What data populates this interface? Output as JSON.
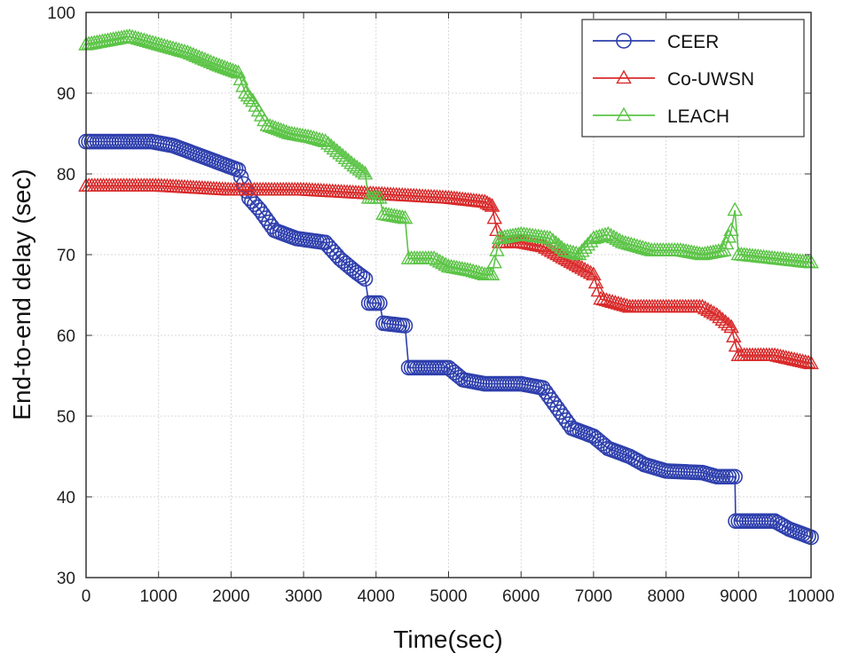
{
  "chart_data": {
    "type": "line",
    "title": "",
    "xlabel": "Time(sec)",
    "ylabel": "End-to-end delay (sec)",
    "xlim": [
      0,
      10000
    ],
    "ylim": [
      30,
      100
    ],
    "xticks": [
      0,
      1000,
      2000,
      3000,
      4000,
      5000,
      6000,
      7000,
      8000,
      9000,
      10000
    ],
    "yticks": [
      30,
      40,
      50,
      60,
      70,
      80,
      90,
      100
    ],
    "grid": true,
    "legend_position": "top-right",
    "series": [
      {
        "name": "CEER",
        "color": "#2e3fad",
        "marker": "circle",
        "points": [
          [
            0,
            84
          ],
          [
            500,
            84
          ],
          [
            900,
            84
          ],
          [
            1200,
            83.5
          ],
          [
            1500,
            82.5
          ],
          [
            1800,
            81.5
          ],
          [
            2100,
            80.5
          ],
          [
            2250,
            77
          ],
          [
            2400,
            75.5
          ],
          [
            2600,
            73
          ],
          [
            2900,
            72
          ],
          [
            3300,
            71.5
          ],
          [
            3500,
            69.5
          ],
          [
            3700,
            68
          ],
          [
            3850,
            67
          ],
          [
            3900,
            64
          ],
          [
            4050,
            64
          ],
          [
            4100,
            61.5
          ],
          [
            4400,
            61.2
          ],
          [
            4450,
            56
          ],
          [
            5000,
            56
          ],
          [
            5200,
            54.5
          ],
          [
            5500,
            54
          ],
          [
            6000,
            54
          ],
          [
            6300,
            53.5
          ],
          [
            6500,
            51
          ],
          [
            6700,
            48.5
          ],
          [
            7000,
            47.5
          ],
          [
            7200,
            46
          ],
          [
            7500,
            45
          ],
          [
            7700,
            44
          ],
          [
            8000,
            43.2
          ],
          [
            8500,
            43
          ],
          [
            8700,
            42.5
          ],
          [
            8950,
            42.5
          ],
          [
            8960,
            37
          ],
          [
            9500,
            37
          ],
          [
            9700,
            36
          ],
          [
            10000,
            35
          ]
        ]
      },
      {
        "name": "Co-UWSN",
        "color": "#d92b2b",
        "marker": "triangle",
        "points": [
          [
            0,
            78.5
          ],
          [
            1000,
            78.5
          ],
          [
            2000,
            78
          ],
          [
            3000,
            78
          ],
          [
            4000,
            77.5
          ],
          [
            5000,
            77
          ],
          [
            5500,
            76.5
          ],
          [
            5600,
            76
          ],
          [
            5700,
            71.5
          ],
          [
            6000,
            71.5
          ],
          [
            6300,
            71
          ],
          [
            6500,
            70
          ],
          [
            6800,
            68.5
          ],
          [
            7000,
            67.5
          ],
          [
            7100,
            64.5
          ],
          [
            7500,
            63.5
          ],
          [
            8000,
            63.5
          ],
          [
            8500,
            63.5
          ],
          [
            8700,
            62.5
          ],
          [
            8900,
            61
          ],
          [
            9000,
            57.5
          ],
          [
            9500,
            57.5
          ],
          [
            10000,
            56.5
          ]
        ]
      },
      {
        "name": "LEACH",
        "color": "#5cc447",
        "marker": "triangle",
        "points": [
          [
            0,
            96
          ],
          [
            300,
            96.5
          ],
          [
            600,
            97
          ],
          [
            1000,
            96
          ],
          [
            1400,
            95
          ],
          [
            1800,
            93.5
          ],
          [
            2100,
            92.5
          ],
          [
            2200,
            90
          ],
          [
            2300,
            89
          ],
          [
            2500,
            86
          ],
          [
            2800,
            85
          ],
          [
            3100,
            84.5
          ],
          [
            3300,
            84
          ],
          [
            3500,
            82.5
          ],
          [
            3700,
            81
          ],
          [
            3850,
            80
          ],
          [
            3900,
            77
          ],
          [
            4050,
            77
          ],
          [
            4100,
            75
          ],
          [
            4400,
            74.5
          ],
          [
            4450,
            69.5
          ],
          [
            4800,
            69.5
          ],
          [
            5000,
            68.5
          ],
          [
            5300,
            68
          ],
          [
            5500,
            67.5
          ],
          [
            5600,
            67.5
          ],
          [
            5700,
            72
          ],
          [
            6000,
            72.5
          ],
          [
            6400,
            72
          ],
          [
            6600,
            70.5
          ],
          [
            6800,
            70
          ],
          [
            7000,
            72
          ],
          [
            7200,
            72.5
          ],
          [
            7400,
            71.5
          ],
          [
            7600,
            71
          ],
          [
            7800,
            70.5
          ],
          [
            8200,
            70.5
          ],
          [
            8500,
            70
          ],
          [
            8800,
            70.5
          ],
          [
            8900,
            73
          ],
          [
            8950,
            75.5
          ],
          [
            9000,
            70
          ],
          [
            9500,
            69.5
          ],
          [
            10000,
            69
          ]
        ]
      }
    ]
  }
}
